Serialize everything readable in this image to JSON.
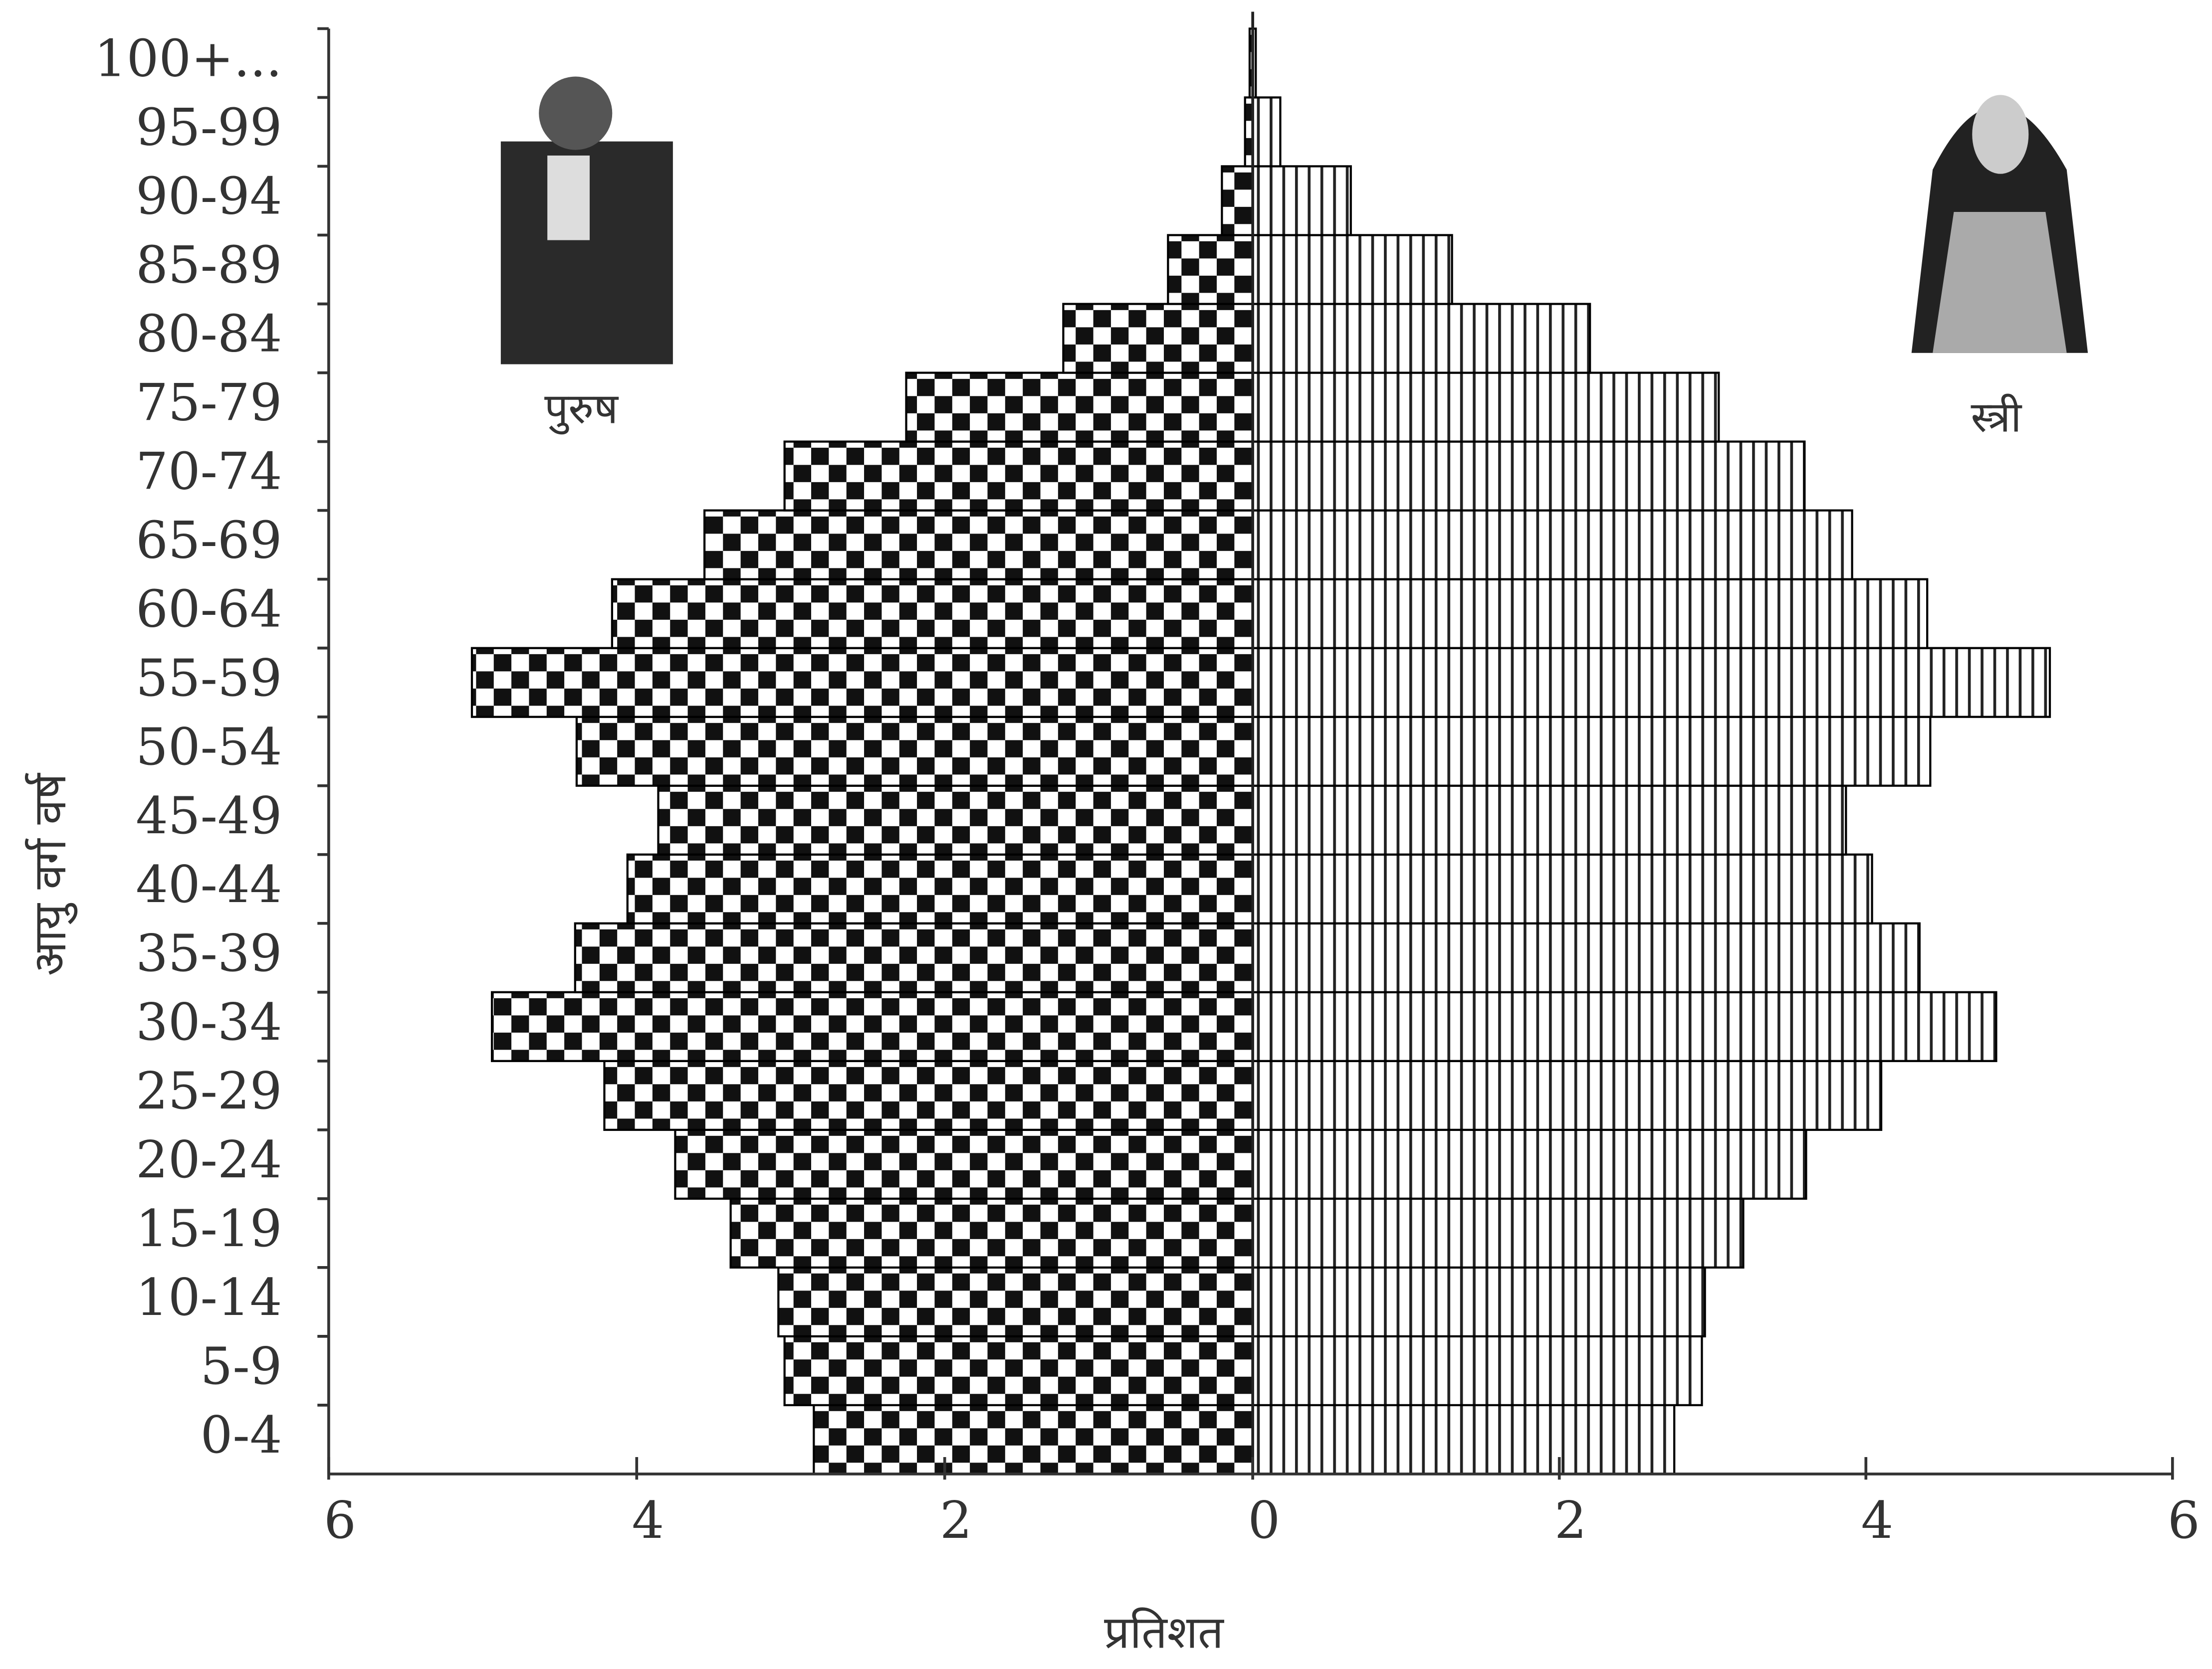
{
  "chart_data": {
    "type": "pyramid",
    "y_label": "आयु वर्ग वर्ष",
    "x_label": "प्रतिशत",
    "categories": [
      "0-4",
      "5-9",
      "10-14",
      "15-19",
      "20-24",
      "25-29",
      "30-34",
      "35-39",
      "40-44",
      "45-49",
      "50-54",
      "55-59",
      "60-64",
      "65-69",
      "70-74",
      "75-79",
      "80-84",
      "85-89",
      "90-94",
      "95-99",
      "100+..."
    ],
    "series": [
      {
        "name": "पुरुष",
        "color": "#000000",
        "side": "left",
        "values": [
          2.85,
          3.04,
          3.08,
          3.39,
          3.75,
          4.21,
          4.94,
          4.4,
          4.06,
          3.86,
          4.39,
          5.07,
          4.16,
          3.56,
          3.04,
          2.25,
          1.23,
          0.55,
          0.2,
          0.05,
          0.02
        ]
      },
      {
        "name": "स्त्री",
        "color": "#000000",
        "side": "right",
        "values": [
          2.75,
          2.93,
          2.95,
          3.2,
          3.61,
          4.1,
          4.85,
          4.35,
          4.04,
          3.87,
          4.42,
          5.2,
          4.4,
          3.91,
          3.6,
          3.04,
          2.2,
          1.3,
          0.64,
          0.18,
          0.02
        ]
      }
    ],
    "xlim": [
      0,
      6
    ],
    "xticks": [
      0,
      2,
      4,
      6
    ],
    "grid": false
  }
}
